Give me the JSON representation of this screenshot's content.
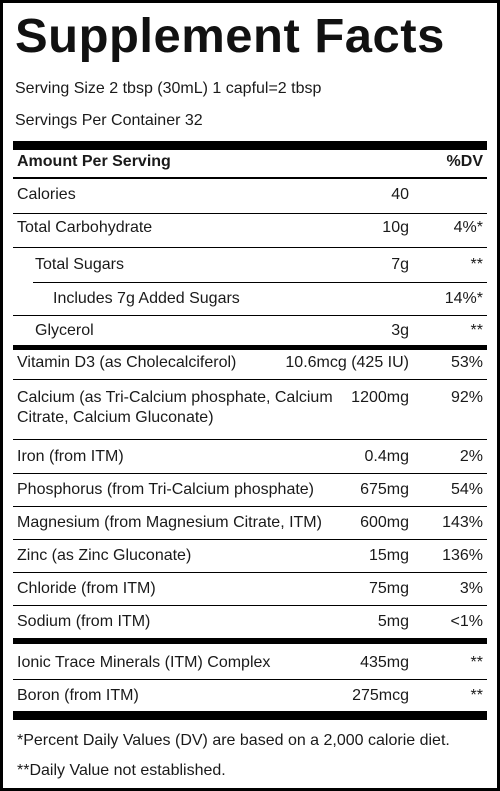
{
  "title": "Supplement Facts",
  "serving_size": "Serving Size 2 tbsp (30mL) 1 capful=2 tbsp",
  "servings_per_container": "Servings Per Container 32",
  "header": {
    "amount_label": "Amount Per Serving",
    "dv_label": "%DV"
  },
  "rows": [
    {
      "name": "Calories",
      "amount": "40",
      "dv": ""
    },
    {
      "name": "Total Carbohydrate",
      "amount": "10g",
      "dv": "4%*"
    },
    {
      "name": "Total Sugars",
      "amount": "7g",
      "dv": "**"
    },
    {
      "name": "Includes 7g Added Sugars",
      "amount": "",
      "dv": "14%*"
    },
    {
      "name": "Glycerol",
      "amount": "3g",
      "dv": "**"
    },
    {
      "name": "Vitamin D3 (as Cholecalciferol)",
      "amount": "10.6mcg (425 IU)",
      "dv": "53%"
    },
    {
      "name": "Calcium (as Tri-Calcium phosphate, Calcium",
      "name2": "Citrate, Calcium Gluconate)",
      "amount": "1200mg",
      "dv": "92%"
    },
    {
      "name": "Iron (from ITM)",
      "amount": "0.4mg",
      "dv": "2%"
    },
    {
      "name": "Phosphorus (from Tri-Calcium phosphate)",
      "amount": "675mg",
      "dv": "54%"
    },
    {
      "name": "Magnesium (from Magnesium Citrate, ITM)",
      "amount": "600mg",
      "dv": "143%"
    },
    {
      "name": "Zinc (as Zinc Gluconate)",
      "amount": "15mg",
      "dv": "136%"
    },
    {
      "name": "Chloride (from ITM)",
      "amount": "75mg",
      "dv": "3%"
    },
    {
      "name": "Sodium (from ITM)",
      "amount": "5mg",
      "dv": "<1%"
    },
    {
      "name": "Ionic Trace Minerals (ITM) Complex",
      "amount": "435mg",
      "dv": "**"
    },
    {
      "name": "Boron (from ITM)",
      "amount": "275mcg",
      "dv": "**"
    }
  ],
  "footnotes": [
    "*Percent Daily Values (DV) are based on a 2,000 calorie diet.",
    "**Daily Value not established."
  ]
}
